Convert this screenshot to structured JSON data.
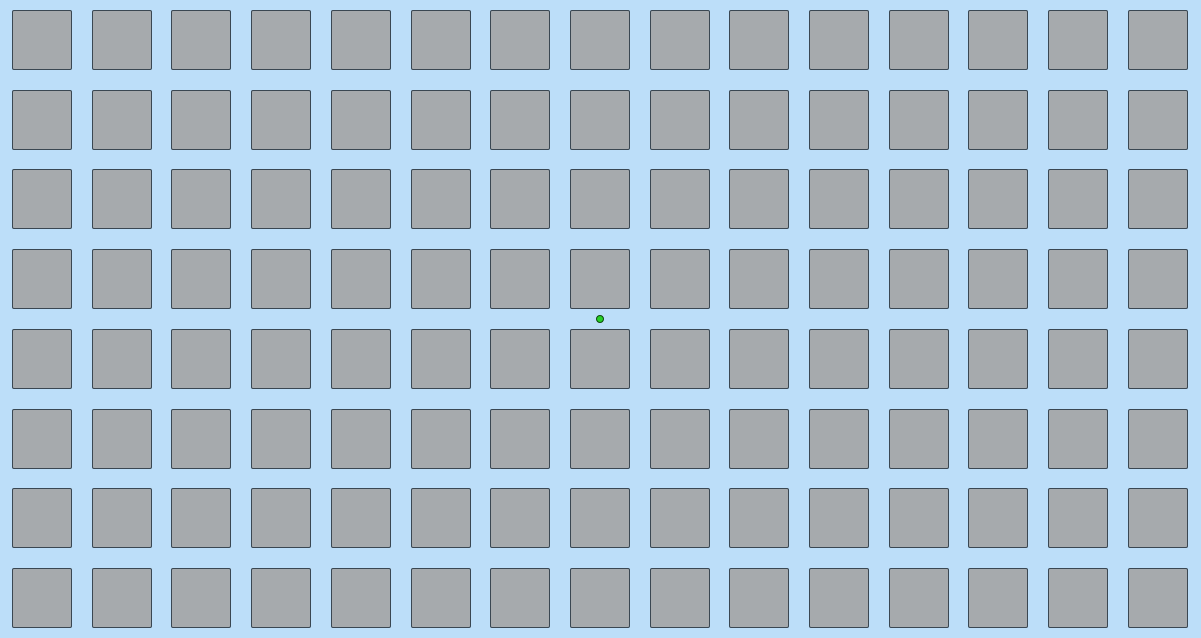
{
  "grid": {
    "rows": 8,
    "cols": 15
  },
  "colors": {
    "background": "#bcdef9",
    "tile": "#a6aaad",
    "tile_border": "#3a4752",
    "marker": "#27d027"
  },
  "marker": {
    "icon": "green-dot-icon"
  }
}
